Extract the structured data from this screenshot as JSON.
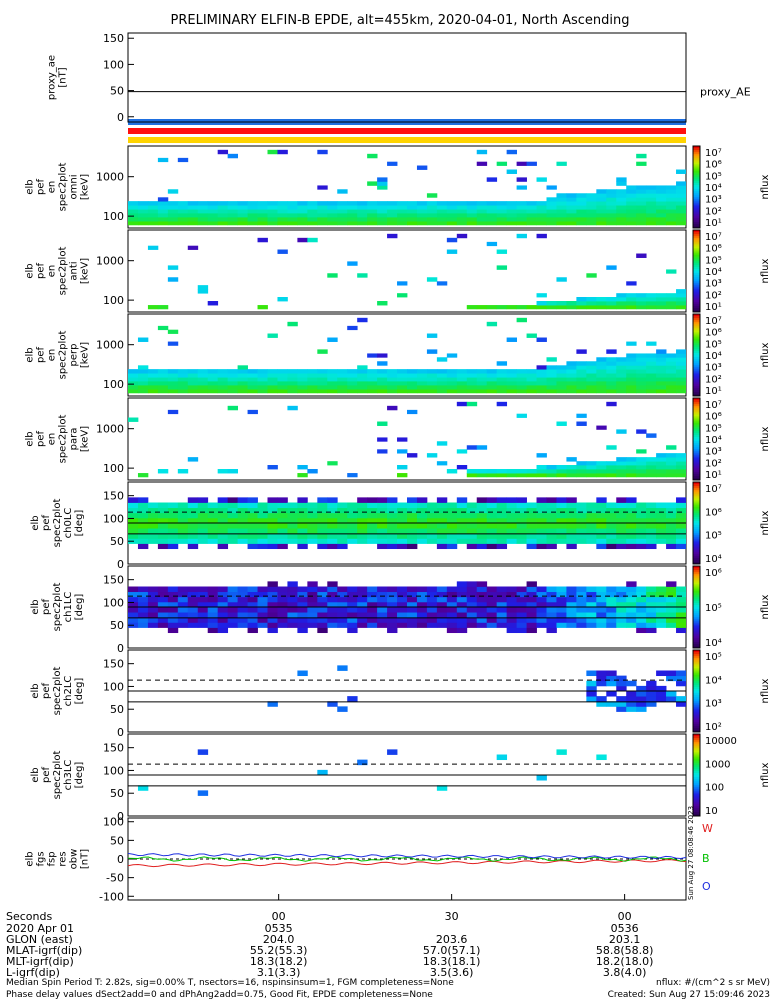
{
  "title": "PRELIMINARY ELFIN-B EPDE, alt=455km, 2020-04-01, North Ascending",
  "chart_data": {
    "type": "heatmap",
    "panels": [
      {
        "name": "proxy_ae",
        "type": "line",
        "label_lines": [
          "proxy_ae",
          "[nT]"
        ],
        "yticks": [
          "150",
          "100",
          "50",
          "0"
        ],
        "ylim": [
          -10,
          160
        ],
        "legend": "proxy_AE",
        "series": [
          {
            "name": "proxy_AE",
            "value": 48
          }
        ]
      },
      {
        "name": "spec-en-omni",
        "type": "heatmap",
        "label_lines": [
          "elb",
          "pef",
          "en",
          "spec2plot",
          "omni",
          "[keV]"
        ],
        "yticks": [
          "1000",
          "100"
        ],
        "ylog": true,
        "cbar_ticks": [
          "10⁷",
          "10⁶",
          "10⁵",
          "10⁴",
          "10³",
          "10²",
          "10¹"
        ],
        "cbar_title": "nflux",
        "bg": "rgba(255,255,255,0)",
        "band_low_keV": 60,
        "band_high_keV": 210,
        "band_rise_keV": 650,
        "scatter_density": 0.05
      },
      {
        "name": "spec-en-anti",
        "type": "heatmap",
        "label_lines": [
          "elb",
          "pef",
          "en",
          "spec2plot",
          "anti",
          "[keV]"
        ],
        "yticks": [
          "1000",
          "100"
        ],
        "ylog": true,
        "cbar_ticks": [
          "10⁷",
          "10⁶",
          "10⁵",
          "10⁴",
          "10³",
          "10²",
          "10¹"
        ],
        "cbar_title": "nflux",
        "band_low_keV": 60,
        "band_high_keV": 75,
        "band_rise_keV": 160,
        "scatter_density": 0.03
      },
      {
        "name": "spec-en-perp",
        "type": "heatmap",
        "label_lines": [
          "elb",
          "pef",
          "en",
          "spec2plot",
          "perp",
          "[keV]"
        ],
        "yticks": [
          "1000",
          "100"
        ],
        "ylog": true,
        "cbar_ticks": [
          "10⁷",
          "10⁶",
          "10⁵",
          "10⁴",
          "10³",
          "10²",
          "10¹"
        ],
        "cbar_title": "nflux",
        "band_low_keV": 60,
        "band_high_keV": 210,
        "band_rise_keV": 650,
        "scatter_density": 0.05
      },
      {
        "name": "spec-en-para",
        "type": "heatmap",
        "label_lines": [
          "elb",
          "pef",
          "en",
          "spec2plot",
          "para",
          "[keV]"
        ],
        "yticks": [
          "1000",
          "100"
        ],
        "ylog": true,
        "cbar_ticks": [
          "10⁷",
          "10⁶",
          "10⁵",
          "10⁴",
          "10³",
          "10²",
          "10¹"
        ],
        "cbar_title": "nflux",
        "band_low_keV": 60,
        "band_high_keV": 80,
        "band_rise_keV": 220,
        "scatter_density": 0.04
      },
      {
        "name": "spec-pa-ch0",
        "type": "heatmap",
        "label_lines": [
          "elb",
          "pef",
          "spec2plot",
          "ch0LC",
          "[deg]"
        ],
        "yticks": [
          "150",
          "100",
          "50",
          "0"
        ],
        "ylim": [
          0,
          180
        ],
        "cbar_ticks": [
          "10⁷",
          "10⁶",
          "10⁵",
          "10⁴"
        ],
        "cbar_title": "nflux",
        "lc_lines_deg": [
          66,
          90,
          114
        ]
      },
      {
        "name": "spec-pa-ch1",
        "type": "heatmap",
        "label_lines": [
          "elb",
          "pef",
          "spec2plot",
          "ch1LC",
          "[deg]"
        ],
        "yticks": [
          "150",
          "100",
          "50",
          "0"
        ],
        "ylim": [
          0,
          180
        ],
        "cbar_ticks": [
          "10⁶",
          "10⁵",
          "10⁴"
        ],
        "cbar_title": "nflux",
        "lc_lines_deg": [
          66,
          90,
          114
        ]
      },
      {
        "name": "spec-pa-ch2",
        "type": "heatmap",
        "label_lines": [
          "elb",
          "pef",
          "spec2plot",
          "ch2LC",
          "[deg]"
        ],
        "yticks": [
          "150",
          "100",
          "50",
          "0"
        ],
        "ylim": [
          0,
          180
        ],
        "cbar_ticks": [
          "10⁵",
          "10⁴",
          "10³",
          "10²"
        ],
        "cbar_title": "nflux",
        "lc_lines_deg": [
          66,
          90,
          114
        ]
      },
      {
        "name": "spec-pa-ch3",
        "type": "heatmap",
        "label_lines": [
          "elb",
          "pef",
          "spec2plot",
          "ch3LC",
          "[deg]"
        ],
        "yticks": [
          "150",
          "100",
          "50",
          "0"
        ],
        "ylim": [
          0,
          180
        ],
        "cbar_ticks": [
          "10000",
          "1000",
          "100",
          "10"
        ],
        "cbar_title": "nflux",
        "lc_lines_deg": [
          66,
          90,
          114
        ]
      },
      {
        "name": "fgs-res",
        "type": "line",
        "label_lines": [
          "elb",
          "fgs",
          "fsp",
          "res",
          "obw",
          "[nT]"
        ],
        "yticks": [
          "100",
          "50",
          "0",
          "-50",
          "-100"
        ],
        "ylim": [
          -110,
          110
        ],
        "series": [
          {
            "name": "W",
            "color": "#e02020"
          },
          {
            "name": "B",
            "color": "#00c000"
          },
          {
            "name": "O",
            "color": "#2030e0"
          }
        ]
      }
    ],
    "xaxis": {
      "label": "Seconds",
      "ticks": [
        "00",
        "30",
        "00"
      ],
      "tick_fracs": [
        0.27,
        0.58,
        0.89
      ]
    },
    "ephemeris": [
      {
        "label": "2020 Apr 01",
        "values": [
          "0535",
          "",
          "0536"
        ]
      },
      {
        "label": "GLON (east)",
        "values": [
          "204.0",
          "203.6",
          "203.1"
        ]
      },
      {
        "label": "MLAT-igrf(dip)",
        "values": [
          "55.2(55.3)",
          "57.0(57.1)",
          "58.8(58.8)"
        ]
      },
      {
        "label": "MLT-igrf(dip)",
        "values": [
          "18.3(18.2)",
          "18.3(18.1)",
          "18.2(18.0)"
        ]
      },
      {
        "label": "L-igrf(dip)",
        "values": [
          "3.1(3.3)",
          "3.5(3.6)",
          "3.8(4.0)"
        ]
      }
    ]
  },
  "footer": {
    "line1": "Median Spin Period T: 2.82s, sig=0.00% T, nsectors=16, nspinsinsum=1, FGM completeness=None",
    "line2": "Phase delay values dSect2add=0 and dPhAng2add=0.75, Good Fit, EPDE completeness=None",
    "units": "nflux: #/(cm^2 s sr MeV)",
    "created": "Created: Sun Aug 27 15:09:46 2023",
    "stamp": "Sun Aug 27 08:08:46 2023"
  },
  "colors": {
    "bar1": "#1e6fe0",
    "bar2": "#ff1010",
    "bar3": "#ffd400"
  }
}
